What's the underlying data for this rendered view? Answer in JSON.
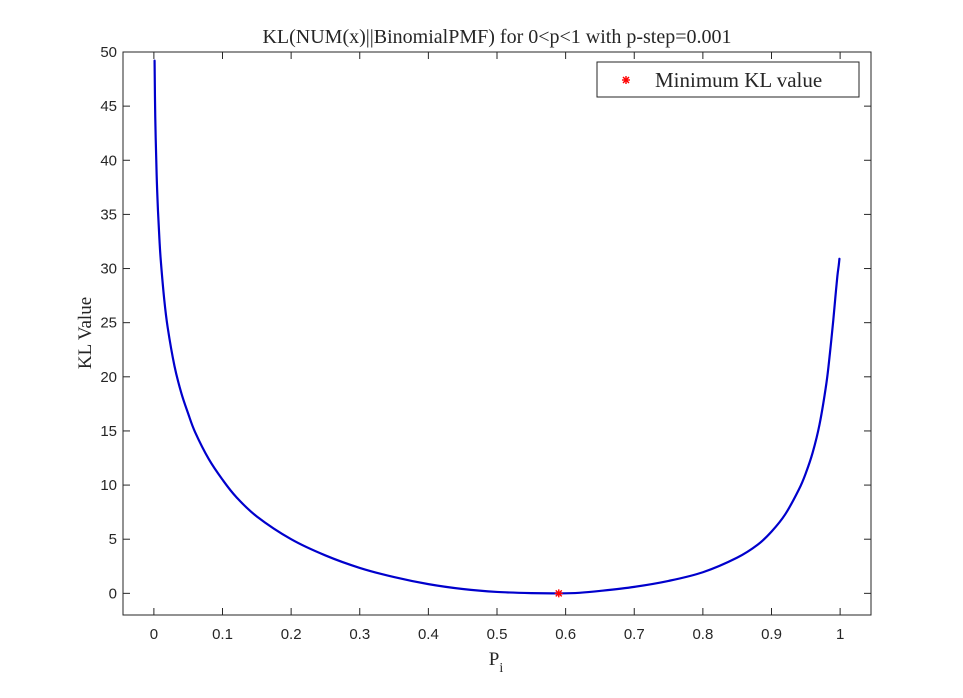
{
  "chart_data": {
    "type": "line",
    "title": "KL(NUM(x)||BinomialPMF) for 0<p<1 with p-step=0.001",
    "xlabel": "P",
    "xlabel_subscript": "i",
    "ylabel": "KL Value",
    "xlim": [
      -0.045,
      1.045
    ],
    "ylim": [
      -2,
      50
    ],
    "xticks": [
      0,
      0.1,
      0.2,
      0.3,
      0.4,
      0.5,
      0.6,
      0.7,
      0.8,
      0.9,
      1
    ],
    "xtick_labels": [
      "0",
      "0.1",
      "0.2",
      "0.3",
      "0.4",
      "0.5",
      "0.6",
      "0.7",
      "0.8",
      "0.9",
      "1"
    ],
    "yticks": [
      0,
      5,
      10,
      15,
      20,
      25,
      30,
      35,
      40,
      45,
      50
    ],
    "ytick_labels": [
      "0",
      "5",
      "10",
      "15",
      "20",
      "25",
      "30",
      "35",
      "40",
      "45",
      "50"
    ],
    "grid": false,
    "legend_position": "top-right",
    "series": [
      {
        "color": "#0000cc",
        "x": [
          0.001,
          0.002,
          0.004,
          0.006,
          0.008,
          0.01,
          0.015,
          0.02,
          0.03,
          0.04,
          0.05,
          0.06,
          0.08,
          0.1,
          0.12,
          0.15,
          0.2,
          0.25,
          0.3,
          0.35,
          0.4,
          0.45,
          0.5,
          0.55,
          0.59,
          0.62,
          0.65,
          0.7,
          0.75,
          0.8,
          0.85,
          0.88,
          0.9,
          0.92,
          0.94,
          0.95,
          0.96,
          0.97,
          0.98,
          0.985,
          0.99,
          0.993,
          0.996,
          0.998,
          0.999
        ],
        "y": [
          49.2,
          44.0,
          38.7,
          35.3,
          32.8,
          30.8,
          27.2,
          24.6,
          21.0,
          18.5,
          16.6,
          14.9,
          12.4,
          10.5,
          8.9,
          7.1,
          5.0,
          3.5,
          2.35,
          1.5,
          0.85,
          0.4,
          0.13,
          0.02,
          0.0,
          0.05,
          0.22,
          0.6,
          1.15,
          1.95,
          3.3,
          4.5,
          5.7,
          7.3,
          9.6,
          11.1,
          13.0,
          15.6,
          19.4,
          22.1,
          25.2,
          27.3,
          29.3,
          30.3,
          30.9
        ]
      },
      {
        "name": "Minimum KL value",
        "type": "scatter",
        "marker": "*",
        "color": "#ff0000",
        "x": [
          0.59
        ],
        "y": [
          0.0
        ]
      }
    ]
  }
}
